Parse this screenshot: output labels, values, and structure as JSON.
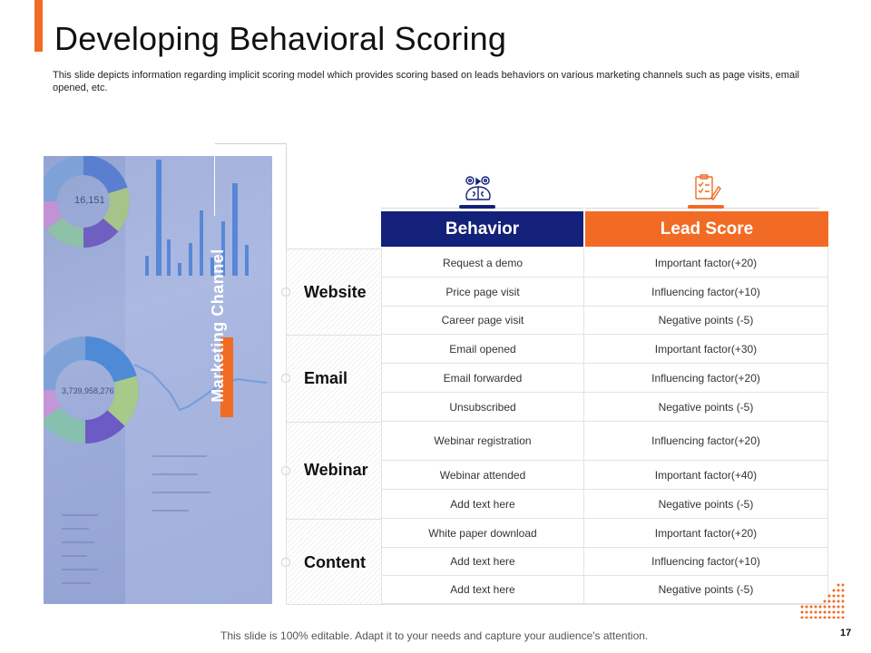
{
  "slide": {
    "title": "Developing Behavioral Scoring",
    "subtitle": "This slide depicts information regarding implicit scoring model which provides scoring based on leads behaviors on various marketing channels such as page visits, email opened, etc.",
    "footer": "This slide is 100% editable. Adapt it to your needs and capture your audience's attention.",
    "page_number": "17",
    "colors": {
      "accent": "#f26b25",
      "navy": "#13217a"
    }
  },
  "panel": {
    "vertical_label": "Marketing Channel",
    "photo_text_1": "16,151",
    "photo_text_2": "3,739,958,276"
  },
  "table": {
    "headers": {
      "behavior": "Behavior",
      "score": "Lead Score"
    },
    "icons": {
      "behavior": "brain-gears-icon",
      "score": "checklist-icon"
    },
    "channels": [
      {
        "name": "Website",
        "rows": [
          {
            "behavior": "Request a demo",
            "score": "Important factor(+20)"
          },
          {
            "behavior": "Price page visit",
            "score": "Influencing factor(+10)"
          },
          {
            "behavior": "Career page visit",
            "score": "Negative points (-5)"
          }
        ]
      },
      {
        "name": "Email",
        "rows": [
          {
            "behavior": "Email opened",
            "score": "Important factor(+30)"
          },
          {
            "behavior": "Email forwarded",
            "score": "Influencing factor(+20)"
          },
          {
            "behavior": "Unsubscribed",
            "score": "Negative points (-5)"
          }
        ]
      },
      {
        "name": "Webinar",
        "rows": [
          {
            "behavior": "Webinar registration",
            "score": "Influencing factor(+20)"
          },
          {
            "behavior": "Webinar attended",
            "score": "Important factor(+40)"
          },
          {
            "behavior": "Add text here",
            "score": "Negative points (-5)"
          }
        ]
      },
      {
        "name": "Content",
        "rows": [
          {
            "behavior": "White paper download",
            "score": "Important factor(+20)"
          },
          {
            "behavior": "Add text here",
            "score": "Influencing factor(+10)"
          },
          {
            "behavior": "Add text here",
            "score": "Negative points (-5)"
          }
        ]
      }
    ]
  }
}
